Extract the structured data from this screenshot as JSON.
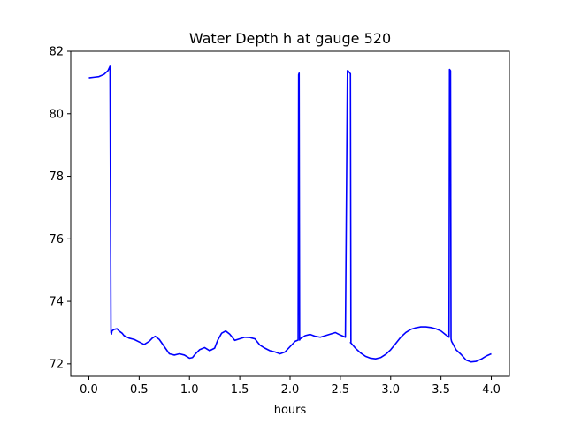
{
  "chart_data": {
    "type": "line",
    "title": "Water Depth h at gauge 520",
    "xlabel": "hours",
    "ylabel": "",
    "xlim": [
      -0.18,
      4.18
    ],
    "ylim": [
      71.6,
      82.0
    ],
    "x_ticks": [
      0.0,
      0.5,
      1.0,
      1.5,
      2.0,
      2.5,
      3.0,
      3.5,
      4.0
    ],
    "x_tick_labels": [
      "0.0",
      "0.5",
      "1.0",
      "1.5",
      "2.0",
      "2.5",
      "3.0",
      "3.5",
      "4.0"
    ],
    "y_ticks": [
      72,
      74,
      76,
      78,
      80,
      82
    ],
    "y_tick_labels": [
      "72",
      "74",
      "76",
      "78",
      "80",
      "82"
    ],
    "grid": false,
    "series": [
      {
        "color": "#0000ff",
        "x": [
          0.0,
          0.05,
          0.1,
          0.15,
          0.19,
          0.21,
          0.22,
          0.225,
          0.23,
          0.25,
          0.28,
          0.3,
          0.33,
          0.35,
          0.4,
          0.45,
          0.5,
          0.55,
          0.6,
          0.63,
          0.66,
          0.7,
          0.75,
          0.8,
          0.85,
          0.9,
          0.95,
          1.0,
          1.03,
          1.06,
          1.1,
          1.15,
          1.2,
          1.25,
          1.28,
          1.32,
          1.36,
          1.4,
          1.45,
          1.5,
          1.55,
          1.6,
          1.65,
          1.7,
          1.75,
          1.8,
          1.85,
          1.9,
          1.95,
          2.0,
          2.05,
          2.08,
          2.085,
          2.09,
          2.095,
          2.1,
          2.15,
          2.2,
          2.25,
          2.3,
          2.35,
          2.4,
          2.45,
          2.5,
          2.55,
          2.57,
          2.575,
          2.6,
          2.605,
          2.6,
          2.61,
          2.65,
          2.7,
          2.75,
          2.8,
          2.85,
          2.9,
          2.95,
          3.0,
          3.05,
          3.1,
          3.15,
          3.2,
          3.25,
          3.3,
          3.35,
          3.4,
          3.45,
          3.5,
          3.55,
          3.58,
          3.585,
          3.595,
          3.6,
          3.605,
          3.65,
          3.7,
          3.75,
          3.8,
          3.85,
          3.9,
          3.95,
          4.0
        ],
        "y": [
          81.15,
          81.17,
          81.19,
          81.26,
          81.38,
          81.52,
          73.0,
          72.95,
          73.05,
          73.1,
          73.12,
          73.05,
          72.98,
          72.9,
          72.82,
          72.78,
          72.7,
          72.62,
          72.72,
          72.82,
          72.88,
          72.78,
          72.55,
          72.32,
          72.28,
          72.32,
          72.28,
          72.18,
          72.2,
          72.32,
          72.45,
          72.52,
          72.42,
          72.5,
          72.75,
          72.98,
          73.05,
          72.95,
          72.75,
          72.8,
          72.85,
          72.84,
          72.8,
          72.6,
          72.5,
          72.42,
          72.38,
          72.32,
          72.38,
          72.55,
          72.72,
          72.76,
          81.25,
          81.3,
          72.76,
          72.8,
          72.9,
          72.94,
          72.88,
          72.85,
          72.9,
          72.95,
          73.0,
          72.92,
          72.85,
          81.38,
          81.38,
          81.28,
          72.68,
          72.68,
          72.65,
          72.5,
          72.35,
          72.24,
          72.18,
          72.16,
          72.2,
          72.3,
          72.45,
          72.65,
          72.85,
          73.0,
          73.1,
          73.15,
          73.18,
          73.18,
          73.16,
          73.12,
          73.05,
          72.92,
          72.85,
          81.42,
          81.38,
          72.8,
          72.72,
          72.45,
          72.3,
          72.12,
          72.06,
          72.08,
          72.15,
          72.25,
          72.32
        ]
      }
    ]
  }
}
